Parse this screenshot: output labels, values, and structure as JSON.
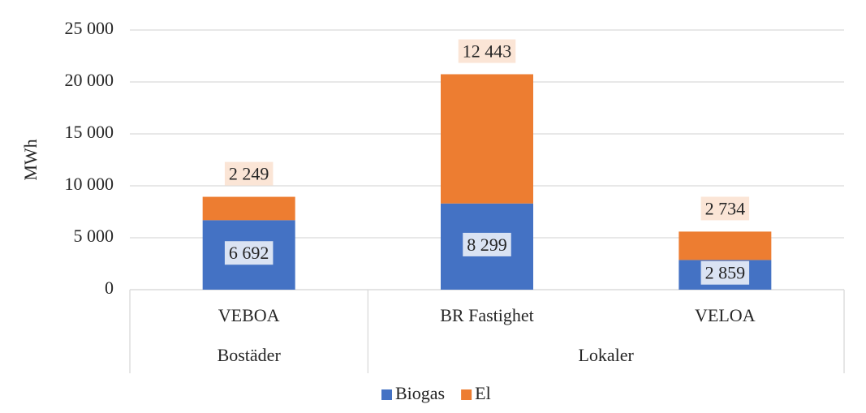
{
  "chart_data": {
    "type": "stacked_bar",
    "categories": [
      "VEBOA",
      "BR Fastighet",
      "VELOA"
    ],
    "category_groups": [
      "Bostäder",
      "Lokaler",
      "Lokaler"
    ],
    "series": [
      {
        "name": "Biogas",
        "color": "#4472c4",
        "values": [
          6692,
          8299,
          2859
        ],
        "value_labels": [
          "6 692",
          "8 299",
          "2 859"
        ],
        "label_bg": "#dae3f3"
      },
      {
        "name": "El",
        "color": "#ed7d31",
        "values": [
          2249,
          12443,
          2734
        ],
        "value_labels": [
          "2 249",
          "12 443",
          "2 734"
        ],
        "label_bg": "#fbe5d6"
      }
    ],
    "ylabel": "MWh",
    "ylim": [
      0,
      25000
    ],
    "yticks": [
      0,
      {
        "value": 5000,
        "label": "5 000"
      },
      {
        "value": 10000,
        "label": "10 000"
      },
      {
        "value": 15000,
        "label": "15 000"
      },
      {
        "value": 20000,
        "label": "20 000"
      },
      {
        "value": 25000,
        "label": "25 000"
      }
    ],
    "grid": true,
    "legend": "bottom"
  }
}
